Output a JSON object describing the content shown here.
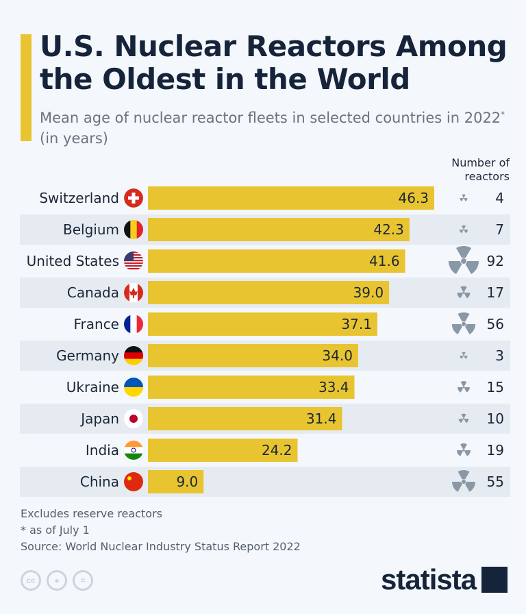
{
  "header": {
    "title": "U.S. Nuclear Reactors Among the Oldest in the World",
    "subtitle": "Mean age of nuclear reactor fleets in selected countries in 2022",
    "subtitle_mark": "*",
    "subtitle_tail": " (in years)"
  },
  "chart_data": {
    "type": "bar",
    "orientation": "horizontal",
    "categories": [
      "Switzerland",
      "Belgium",
      "United States",
      "Canada",
      "France",
      "Germany",
      "Ukraine",
      "Japan",
      "India",
      "China"
    ],
    "values": [
      46.3,
      42.3,
      41.6,
      39.0,
      37.1,
      34.0,
      33.4,
      31.4,
      24.2,
      9.0
    ],
    "value_labels": [
      "46.3",
      "42.3",
      "41.6",
      "39.0",
      "37.1",
      "34.0",
      "33.4",
      "31.4",
      "24.2",
      "9.0"
    ],
    "reactors_header": "Number of reactors",
    "reactors": [
      4,
      7,
      92,
      17,
      56,
      3,
      15,
      10,
      19,
      55
    ],
    "bar_color": "#e8c430",
    "row_band_color": "#e6ebf2",
    "icon_color": "#8a98a6"
  },
  "footer": {
    "notes": [
      "Excludes reserve reactors",
      "* as of July 1",
      "Source: World Nuclear Industry Status Report 2022"
    ],
    "license_icons": [
      "cc-icon",
      "by-icon",
      "nd-icon"
    ],
    "cc_text": "cc",
    "logo": "statista"
  }
}
